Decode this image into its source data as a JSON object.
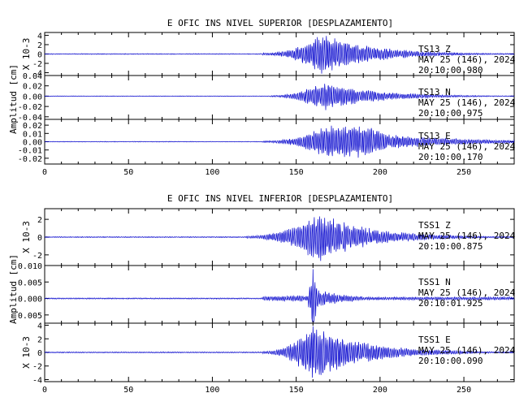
{
  "colors": {
    "trace": "#0000cc",
    "axis": "#000000",
    "background": "#ffffff"
  },
  "chart_data": [
    {
      "type": "line",
      "title": "E OFIC INS NIVEL SUPERIOR [DESPLAZAMIENTO]",
      "xlabel": "",
      "xlim": [
        0,
        280
      ],
      "xticks": [
        "0",
        "50",
        "100",
        "150",
        "200",
        "250"
      ],
      "xtick_values": [
        0,
        50,
        100,
        150,
        200,
        250
      ],
      "ylabel": "Amplitud [cm]",
      "traces": [
        {
          "station": "TS13",
          "component": "Z",
          "date": "MAY 25 (146), 2024",
          "time": "20:10:00.980",
          "scale_label": "X 10-3",
          "ylim": [
            -4.6,
            4.6
          ],
          "yticks": [
            "4",
            "2",
            "0",
            "-2",
            "-4"
          ],
          "ytick_values": [
            4,
            2,
            0,
            -2,
            -4
          ],
          "onset": 130,
          "peak_time": 165,
          "peak_amplitude": 4.5,
          "envelope": "z"
        },
        {
          "station": "TS13",
          "component": "N",
          "date": "MAY 25 (146), 2024",
          "time": "20:10:00.975",
          "scale_label": "",
          "ylim": [
            -0.045,
            0.04
          ],
          "yticks": [
            "0.04",
            "0.02",
            "0.00",
            "-0.02",
            "-0.04"
          ],
          "ytick_values": [
            0.04,
            0.02,
            0.0,
            -0.02,
            -0.04
          ],
          "onset": 135,
          "peak_time": 165,
          "peak_amplitude": 0.03,
          "envelope": "n"
        },
        {
          "station": "TS13",
          "component": "E",
          "date": "MAY 25 (146), 2024",
          "time": "20:10:00.170",
          "scale_label": "",
          "ylim": [
            -0.027,
            0.027
          ],
          "yticks": [
            "0.02",
            "0.01",
            "0.00",
            "-0.01",
            "-0.02"
          ],
          "ytick_values": [
            0.02,
            0.01,
            0.0,
            -0.01,
            -0.02
          ],
          "onset": 130,
          "peak_time": 168,
          "peak_amplitude": 0.021,
          "envelope": "e"
        }
      ]
    },
    {
      "type": "line",
      "title": "E OFIC INS NIVEL INFERIOR [DESPLAZAMIENTO]",
      "xlabel": "",
      "xlim": [
        0,
        280
      ],
      "xticks": [
        "0",
        "50",
        "100",
        "150",
        "200",
        "250"
      ],
      "xtick_values": [
        0,
        50,
        100,
        150,
        200,
        250
      ],
      "ylabel": "Amplitud [cm]",
      "traces": [
        {
          "station": "TSS1",
          "component": "Z",
          "date": "MAY 25 (146), 2024",
          "time": "20:10:00.875",
          "scale_label": "X 10-3",
          "ylim": [
            -3.2,
            3.2
          ],
          "yticks": [
            "2",
            "0",
            "-2"
          ],
          "ytick_values": [
            2,
            0,
            -2
          ],
          "onset": 120,
          "peak_time": 163,
          "peak_amplitude": 2.9,
          "envelope": "z"
        },
        {
          "station": "TSS1",
          "component": "N",
          "date": "MAY 25 (146), 2024",
          "time": "20:10:01.925",
          "scale_label": "",
          "ylim": [
            -0.0075,
            0.01
          ],
          "yticks": [
            "0.010",
            "0.005",
            "0.000",
            "-0.005"
          ],
          "ytick_values": [
            0.01,
            0.005,
            0.0,
            -0.005
          ],
          "onset": 130,
          "peak_time": 160,
          "peak_amplitude": 0.0095,
          "envelope": "spike"
        },
        {
          "station": "TSS1",
          "component": "E",
          "date": "MAY 25 (146), 2024",
          "time": "20:10:00.090",
          "scale_label": "X 10-3",
          "ylim": [
            -4.3,
            4.3
          ],
          "yticks": [
            "4",
            "2",
            "0",
            "-2",
            "-4"
          ],
          "ytick_values": [
            4,
            2,
            0,
            -2,
            -4
          ],
          "onset": 130,
          "peak_time": 160,
          "peak_amplitude": 4.2,
          "envelope": "z"
        }
      ]
    }
  ]
}
